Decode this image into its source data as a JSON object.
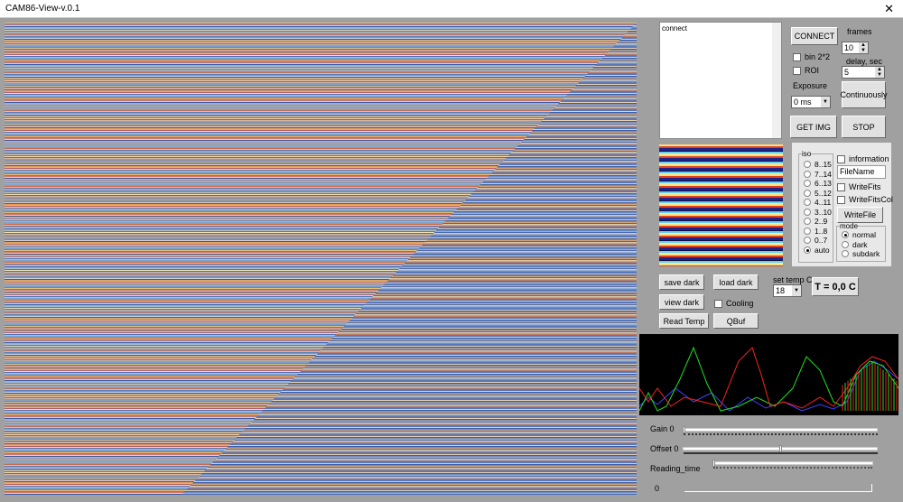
{
  "window": {
    "title": "CAM86-View-v.0.1",
    "close_icon": "close-icon"
  },
  "console": {
    "text": "connect"
  },
  "buttons": {
    "connect": "CONNECT",
    "continuously": "Continuously",
    "get_img": "GET IMG",
    "stop": "STOP",
    "write_file": "WriteFile",
    "save_dark": "save dark",
    "load_dark": "load dark",
    "view_dark": "view dark",
    "read_temp": "Read Temp",
    "qbuf": "QBuf"
  },
  "frames": {
    "label": "frames",
    "value": "10"
  },
  "delay": {
    "label": "delay, sec",
    "value": "5"
  },
  "checkboxes": {
    "bin": "bin 2*2",
    "roi": "ROI",
    "information": "information",
    "write_fits": "WriteFits",
    "write_fits_col": "WriteFitsCol",
    "cooling": "Cooling"
  },
  "exposure": {
    "label": "Exposure",
    "value": "0 ms"
  },
  "iso": {
    "label": "iso",
    "options": [
      "8..15",
      "7..14",
      "6..13",
      "5..12",
      "4..11",
      "3..10",
      "2..9",
      "1..8",
      "0..7",
      "auto"
    ],
    "selected": "auto"
  },
  "filename": {
    "value": "FileName"
  },
  "mode": {
    "label": "mode",
    "options": [
      "normal",
      "dark",
      "subdark"
    ],
    "selected": "normal"
  },
  "temp": {
    "set_label": "set temp C",
    "set_value": "18",
    "display": "T = 0,0 C"
  },
  "histogram": {
    "colors": {
      "red": "#ff2020",
      "green": "#20e020",
      "blue": "#4040ff"
    }
  },
  "sliders": {
    "gain": {
      "label": "Gain 0",
      "value": 0
    },
    "offset": {
      "label": "Offset 0",
      "value": 0.5
    },
    "reading_time": {
      "label": "Reading_time",
      "value": 0
    }
  },
  "progress": {
    "label": "0",
    "value": 0
  }
}
